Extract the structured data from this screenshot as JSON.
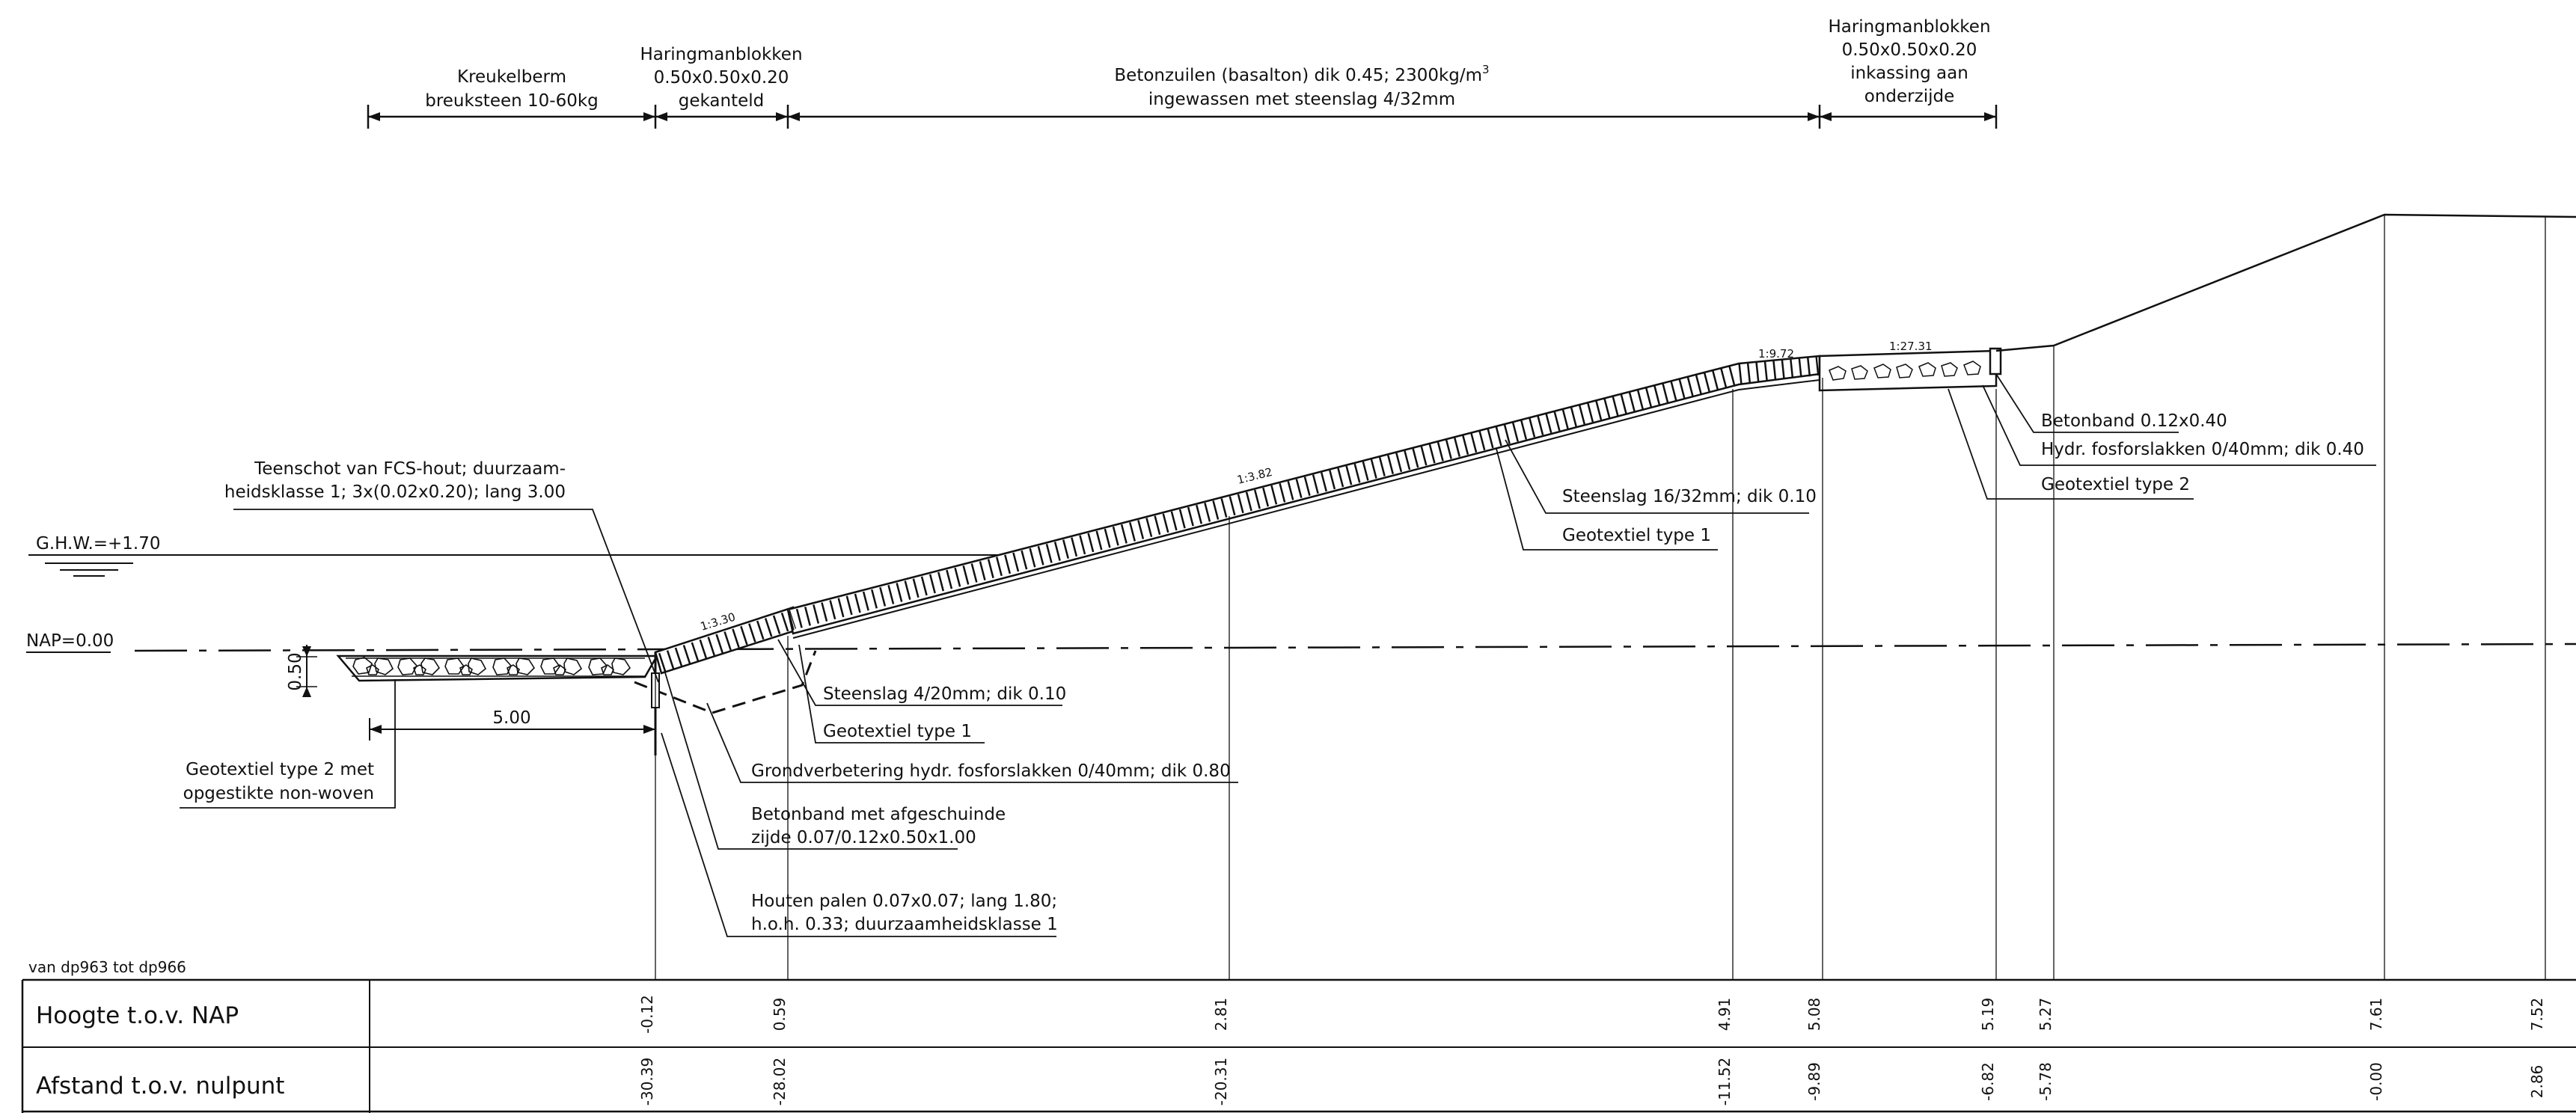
{
  "water_levels": {
    "ghw": "G.H.W.=+1.70",
    "nap": "NAP=0.00"
  },
  "top_zones": [
    {
      "lines": [
        "Kreukelberm",
        "breuksteen 10-60kg"
      ]
    },
    {
      "lines": [
        "Haringmanblokken",
        "0.50x0.50x0.20",
        "gekanteld"
      ]
    },
    {
      "lines": [
        "Betonzuilen (basalton) dik 0.45; 2300kg/m",
        "ingewassen met steenslag 4/32mm"
      ],
      "superscript": "3"
    },
    {
      "lines": [
        "Haringmanblokken",
        "0.50x0.50x0.20",
        "inkassing aan",
        "onderzijde"
      ]
    }
  ],
  "slopes": {
    "toe": "1:3.30",
    "main": "1:3.82",
    "upper": "1:9.72",
    "berm": "1:27.31"
  },
  "dimensions": {
    "toe_width": "5.00",
    "thickness": "0.50"
  },
  "callouts": {
    "teenschot": [
      "Teenschot van FCS-hout; duurzaam-",
      "heidsklasse 1; 3x(0.02x0.20); lang 3.00"
    ],
    "steenslag_small": "Steenslag 4/20mm; dik 0.10",
    "geotextiel1_toe": "Geotextiel type 1",
    "grondverbetering": "Grondverbetering hydr. fosforslakken 0/40mm; dik 0.80",
    "betonband_toe": [
      "Betonband met afgeschuinde",
      "zijde 0.07/0.12x0.50x1.00"
    ],
    "houten_palen": [
      "Houten palen 0.07x0.07; lang 1.80;",
      "h.o.h. 0.33; duurzaamheidsklasse 1"
    ],
    "geotextiel2_toe": [
      "Geotextiel type 2 met",
      "opgestikte non-woven"
    ],
    "steenslag_large": "Steenslag 16/32mm; dik 0.10",
    "geotextiel1_slope": "Geotextiel type 1",
    "betonband_top": "Betonband 0.12x0.40",
    "hydr_top": "Hydr. fosforslakken 0/40mm; dik 0.40",
    "geotextiel2_top": "Geotextiel type 2"
  },
  "table": {
    "section": "van dp963 tot dp966",
    "row1_label": "Hoogte t.o.v. NAP",
    "row2_label": "Afstand t.o.v. nulpunt",
    "heights": [
      "-0.12",
      "0.59",
      "2.81",
      "4.91",
      "5.08",
      "5.19",
      "5.27",
      "7.61",
      "7.52"
    ],
    "distances": [
      "-30.39",
      "-28.02",
      "-20.31",
      "-11.52",
      "-9.89",
      "-6.82",
      "-5.78",
      "-0.00",
      "2.86"
    ]
  }
}
